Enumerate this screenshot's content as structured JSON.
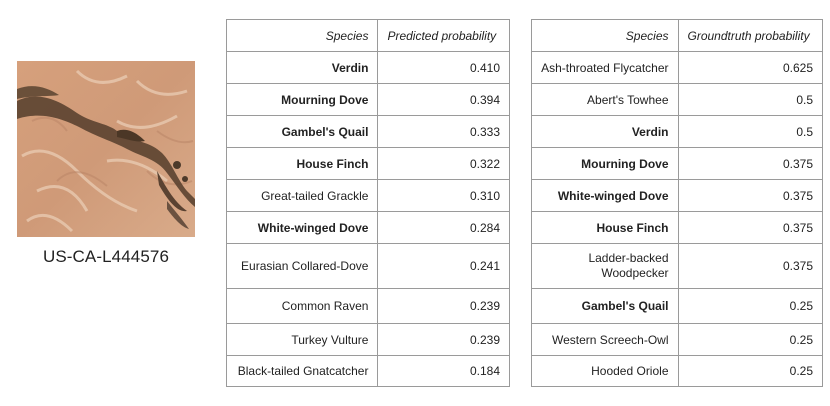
{
  "site": {
    "label": "US-CA-L444576"
  },
  "predicted_table": {
    "headers": {
      "species": "Species",
      "value": "Predicted probability"
    },
    "rows": [
      {
        "species": "Verdin",
        "value": "0.410",
        "bold": true
      },
      {
        "species": "Mourning Dove",
        "value": "0.394",
        "bold": true
      },
      {
        "species": "Gambel's Quail",
        "value": "0.333",
        "bold": true
      },
      {
        "species": "House Finch",
        "value": "0.322",
        "bold": true
      },
      {
        "species": "Great-tailed Grackle",
        "value": "0.310",
        "bold": false
      },
      {
        "species": "White-winged Dove",
        "value": "0.284",
        "bold": true
      },
      {
        "species": "Eurasian Collared-Dove",
        "value": "0.241",
        "bold": false
      },
      {
        "species": "Common Raven",
        "value": "0.239",
        "bold": false
      },
      {
        "species": "Turkey Vulture",
        "value": "0.239",
        "bold": false
      },
      {
        "species": "Black-tailed Gnatcatcher",
        "value": "0.184",
        "bold": false
      }
    ]
  },
  "groundtruth_table": {
    "headers": {
      "species": "Species",
      "value": "Groundtruth probability"
    },
    "rows": [
      {
        "species": "Ash-throated Flycatcher",
        "value": "0.625",
        "bold": false
      },
      {
        "species": "Abert's Towhee",
        "value": "0.5",
        "bold": false
      },
      {
        "species": "Verdin",
        "value": "0.5",
        "bold": true
      },
      {
        "species": "Mourning Dove",
        "value": "0.375",
        "bold": true
      },
      {
        "species": "White-winged Dove",
        "value": "0.375",
        "bold": true
      },
      {
        "species": "House Finch",
        "value": "0.375",
        "bold": true
      },
      {
        "species": "Ladder-backed Woodpecker",
        "value": "0.375",
        "bold": false
      },
      {
        "species": "Gambel's Quail",
        "value": "0.25",
        "bold": true
      },
      {
        "species": "Western Screech-Owl",
        "value": "0.25",
        "bold": false
      },
      {
        "species": "Hooded Oriole",
        "value": "0.25",
        "bold": false
      }
    ]
  }
}
